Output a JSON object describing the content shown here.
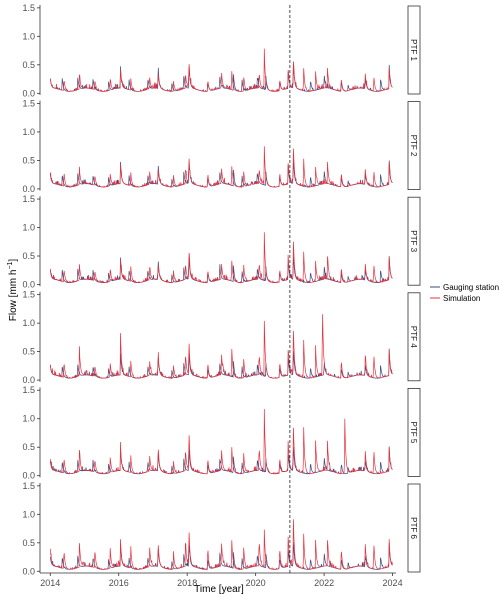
{
  "chart_data": {
    "type": "line",
    "xlabel": "Time [year]",
    "ylabel": "Flow [mm h",
    "ylabel_sup": "−1",
    "ylabel_close": "]",
    "xlim": [
      2013.7,
      2024.1
    ],
    "ylim": [
      -0.03,
      1.55
    ],
    "x_ticks": [
      2014,
      2016,
      2018,
      2020,
      2022,
      2024
    ],
    "x_tick_labels": [
      "2014",
      "2016",
      "2018",
      "2020",
      "2022",
      "2024"
    ],
    "y_ticks": [
      0,
      0.5,
      1.0,
      1.5
    ],
    "y_tick_labels": [
      "0.0",
      "0.5",
      "1.0",
      "1.5"
    ],
    "vline_x": 2021,
    "grid": false,
    "legend_position": "right",
    "series": [
      {
        "name": "Gauging station",
        "color": "#3a4a82"
      },
      {
        "name": "Simulation",
        "color": "#e8323e"
      }
    ],
    "observed_peaks": [
      [
        2014.0,
        0.17
      ],
      [
        2014.35,
        0.22
      ],
      [
        2014.8,
        0.24
      ],
      [
        2015.25,
        0.19
      ],
      [
        2015.7,
        0.18
      ],
      [
        2016.05,
        0.41
      ],
      [
        2016.3,
        0.2
      ],
      [
        2016.85,
        0.2
      ],
      [
        2017.15,
        0.39
      ],
      [
        2017.55,
        0.15
      ],
      [
        2017.9,
        0.22
      ],
      [
        2018.05,
        0.45
      ],
      [
        2018.6,
        0.2
      ],
      [
        2018.95,
        0.25
      ],
      [
        2019.35,
        0.3
      ],
      [
        2019.6,
        0.22
      ],
      [
        2020.05,
        0.22
      ],
      [
        2020.3,
        0.24
      ],
      [
        2020.7,
        0.2
      ],
      [
        2020.95,
        0.35
      ],
      [
        2021.1,
        0.48
      ],
      [
        2021.6,
        0.22
      ],
      [
        2022.0,
        0.25
      ],
      [
        2022.5,
        0.2
      ],
      [
        2022.7,
        0.1
      ],
      [
        2023.2,
        0.22
      ],
      [
        2023.65,
        0.25
      ],
      [
        2023.9,
        0.42
      ]
    ],
    "panels": [
      {
        "label": "PTF 1",
        "sim_peaks": [
          [
            2014.0,
            0.16
          ],
          [
            2014.4,
            0.22
          ],
          [
            2014.85,
            0.27
          ],
          [
            2015.3,
            0.19
          ],
          [
            2015.75,
            0.2
          ],
          [
            2016.05,
            0.35
          ],
          [
            2016.35,
            0.22
          ],
          [
            2016.9,
            0.22
          ],
          [
            2017.15,
            0.3
          ],
          [
            2017.6,
            0.18
          ],
          [
            2017.95,
            0.28
          ],
          [
            2018.05,
            0.5
          ],
          [
            2018.6,
            0.22
          ],
          [
            2019.0,
            0.3
          ],
          [
            2019.3,
            0.35
          ],
          [
            2019.65,
            0.25
          ],
          [
            2020.1,
            0.3
          ],
          [
            2020.25,
            0.72
          ],
          [
            2020.7,
            0.22
          ],
          [
            2020.95,
            0.4
          ],
          [
            2021.1,
            0.53
          ],
          [
            2021.4,
            0.45
          ],
          [
            2021.75,
            0.35
          ],
          [
            2022.1,
            0.35
          ],
          [
            2022.5,
            0.25
          ],
          [
            2023.2,
            0.3
          ],
          [
            2023.45,
            0.28
          ],
          [
            2023.9,
            0.35
          ]
        ]
      },
      {
        "label": "PTF 2",
        "sim_peaks": [
          [
            2014.0,
            0.17
          ],
          [
            2014.4,
            0.25
          ],
          [
            2014.85,
            0.3
          ],
          [
            2015.3,
            0.2
          ],
          [
            2015.75,
            0.22
          ],
          [
            2016.05,
            0.35
          ],
          [
            2016.35,
            0.25
          ],
          [
            2016.9,
            0.25
          ],
          [
            2017.15,
            0.3
          ],
          [
            2017.6,
            0.2
          ],
          [
            2017.95,
            0.3
          ],
          [
            2018.05,
            0.52
          ],
          [
            2018.6,
            0.25
          ],
          [
            2019.0,
            0.3
          ],
          [
            2019.3,
            0.38
          ],
          [
            2019.65,
            0.28
          ],
          [
            2020.1,
            0.3
          ],
          [
            2020.25,
            0.72
          ],
          [
            2020.7,
            0.25
          ],
          [
            2020.95,
            0.45
          ],
          [
            2021.1,
            0.7
          ],
          [
            2021.4,
            0.55
          ],
          [
            2021.75,
            0.35
          ],
          [
            2022.1,
            0.38
          ],
          [
            2022.5,
            0.28
          ],
          [
            2023.2,
            0.3
          ],
          [
            2023.45,
            0.3
          ],
          [
            2023.9,
            0.38
          ]
        ]
      },
      {
        "label": "PTF 3",
        "sim_peaks": [
          [
            2014.0,
            0.18
          ],
          [
            2014.4,
            0.25
          ],
          [
            2014.85,
            0.3
          ],
          [
            2015.3,
            0.2
          ],
          [
            2015.75,
            0.22
          ],
          [
            2016.05,
            0.38
          ],
          [
            2016.35,
            0.28
          ],
          [
            2016.9,
            0.25
          ],
          [
            2017.15,
            0.32
          ],
          [
            2017.6,
            0.2
          ],
          [
            2017.95,
            0.3
          ],
          [
            2018.05,
            0.55
          ],
          [
            2018.6,
            0.25
          ],
          [
            2019.0,
            0.3
          ],
          [
            2019.3,
            0.4
          ],
          [
            2019.65,
            0.3
          ],
          [
            2020.1,
            0.32
          ],
          [
            2020.25,
            0.88
          ],
          [
            2020.7,
            0.25
          ],
          [
            2020.95,
            0.45
          ],
          [
            2021.1,
            0.75
          ],
          [
            2021.4,
            0.6
          ],
          [
            2021.75,
            0.38
          ],
          [
            2022.1,
            0.4
          ],
          [
            2022.5,
            0.3
          ],
          [
            2023.2,
            0.32
          ],
          [
            2023.45,
            0.35
          ],
          [
            2023.9,
            0.4
          ]
        ]
      },
      {
        "label": "PTF 4",
        "sim_peaks": [
          [
            2014.0,
            0.18
          ],
          [
            2014.4,
            0.3
          ],
          [
            2014.85,
            0.5
          ],
          [
            2015.3,
            0.22
          ],
          [
            2015.75,
            0.25
          ],
          [
            2016.05,
            0.78
          ],
          [
            2016.35,
            0.3
          ],
          [
            2016.9,
            0.28
          ],
          [
            2017.15,
            0.4
          ],
          [
            2017.6,
            0.22
          ],
          [
            2017.95,
            0.4
          ],
          [
            2018.05,
            0.65
          ],
          [
            2018.6,
            0.3
          ],
          [
            2019.0,
            0.4
          ],
          [
            2019.3,
            0.55
          ],
          [
            2019.65,
            0.35
          ],
          [
            2020.1,
            0.4
          ],
          [
            2020.25,
            1.03
          ],
          [
            2020.7,
            0.3
          ],
          [
            2020.95,
            0.55
          ],
          [
            2021.1,
            0.88
          ],
          [
            2021.4,
            0.75
          ],
          [
            2021.75,
            0.55
          ],
          [
            2021.95,
            1.3
          ],
          [
            2022.5,
            0.35
          ],
          [
            2023.2,
            0.4
          ],
          [
            2023.45,
            0.45
          ],
          [
            2023.9,
            0.45
          ]
        ]
      },
      {
        "label": "PTF 5",
        "sim_peaks": [
          [
            2014.0,
            0.2
          ],
          [
            2014.4,
            0.3
          ],
          [
            2014.85,
            0.4
          ],
          [
            2015.3,
            0.25
          ],
          [
            2015.75,
            0.28
          ],
          [
            2016.05,
            0.45
          ],
          [
            2016.35,
            0.3
          ],
          [
            2016.9,
            0.3
          ],
          [
            2017.15,
            0.45
          ],
          [
            2017.6,
            0.22
          ],
          [
            2017.95,
            0.4
          ],
          [
            2018.05,
            0.7
          ],
          [
            2018.6,
            0.3
          ],
          [
            2019.0,
            0.4
          ],
          [
            2019.3,
            0.5
          ],
          [
            2019.65,
            0.35
          ],
          [
            2020.1,
            0.45
          ],
          [
            2020.25,
            1.17
          ],
          [
            2020.7,
            0.3
          ],
          [
            2020.95,
            0.55
          ],
          [
            2021.1,
            0.85
          ],
          [
            2021.4,
            0.92
          ],
          [
            2021.75,
            0.6
          ],
          [
            2022.1,
            0.5
          ],
          [
            2022.6,
            1.1
          ],
          [
            2023.2,
            0.4
          ],
          [
            2023.45,
            0.45
          ],
          [
            2023.9,
            0.4
          ]
        ]
      },
      {
        "label": "PTF 6",
        "sim_peaks": [
          [
            2014.0,
            0.3
          ],
          [
            2014.4,
            0.35
          ],
          [
            2014.85,
            0.45
          ],
          [
            2015.3,
            0.35
          ],
          [
            2015.75,
            0.35
          ],
          [
            2016.05,
            0.5
          ],
          [
            2016.35,
            0.4
          ],
          [
            2016.9,
            0.38
          ],
          [
            2017.15,
            0.45
          ],
          [
            2017.6,
            0.3
          ],
          [
            2017.95,
            0.45
          ],
          [
            2018.05,
            0.7
          ],
          [
            2018.6,
            0.4
          ],
          [
            2019.0,
            0.45
          ],
          [
            2019.3,
            0.55
          ],
          [
            2019.65,
            0.4
          ],
          [
            2020.1,
            0.5
          ],
          [
            2020.25,
            0.7
          ],
          [
            2020.7,
            0.4
          ],
          [
            2020.95,
            0.6
          ],
          [
            2021.1,
            0.85
          ],
          [
            2021.4,
            0.7
          ],
          [
            2021.75,
            0.5
          ],
          [
            2022.1,
            0.45
          ],
          [
            2022.5,
            0.4
          ],
          [
            2023.2,
            0.45
          ],
          [
            2023.45,
            0.5
          ],
          [
            2023.9,
            0.45
          ]
        ]
      }
    ]
  }
}
